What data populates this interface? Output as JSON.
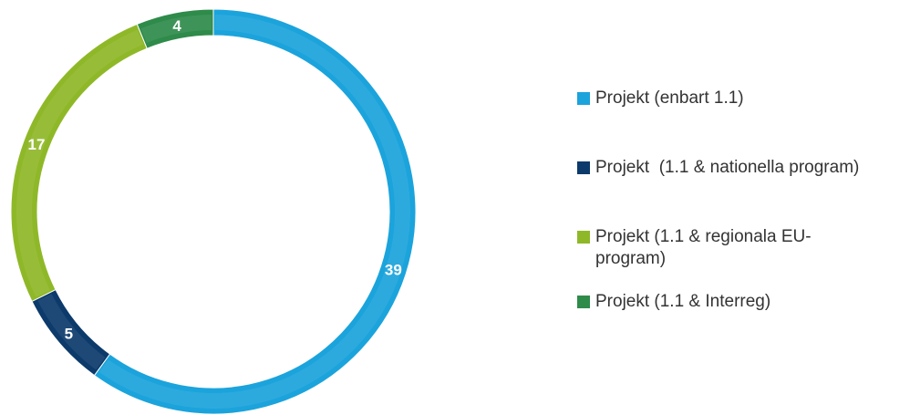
{
  "chart_data": {
    "type": "pie",
    "variant": "donut",
    "title": "",
    "categories": [
      "Projekt (enbart 1.1)",
      "Projekt  (1.1 & nationella program)",
      "Projekt (1.1 & regionala EU-program)",
      "Projekt (1.1 & Interreg)"
    ],
    "values": [
      39,
      5,
      17,
      4
    ],
    "labels": [
      "39",
      "5",
      "17",
      "4"
    ],
    "colors": [
      "#1ba3dc",
      "#0b3a6b",
      "#8fb828",
      "#2e8b4a"
    ],
    "legend_labels": [
      "Projekt (enbart 1.1)",
      "Projekt  (1.1 & nationella program)",
      "Projekt (1.1 & regionala EU-\nprogram)",
      "Projekt (1.1 & Interreg)"
    ],
    "legend_position": "right",
    "start": "top, clockwise"
  }
}
